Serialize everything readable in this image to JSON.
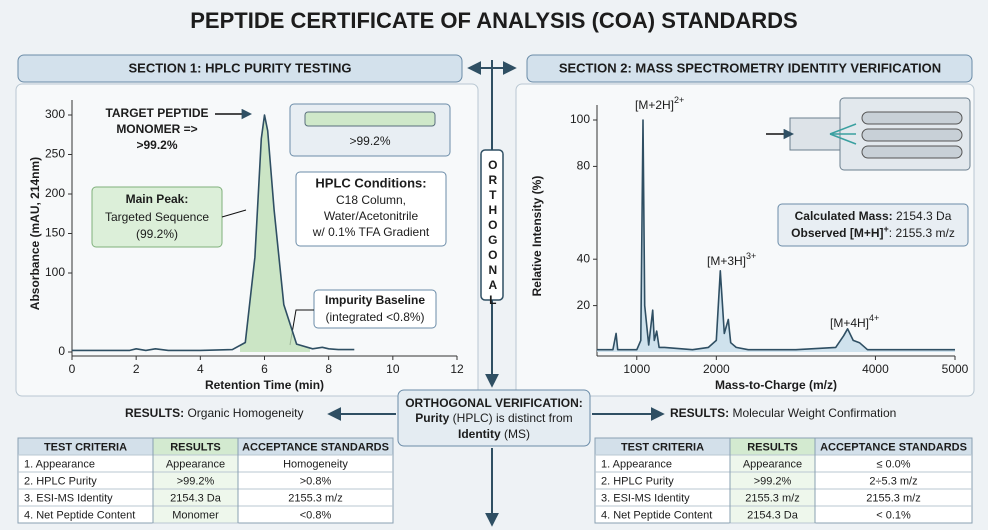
{
  "title": "PEPTIDE CERTIFICATE OF ANALYSIS (COA) STANDARDS",
  "sections": [
    "SECTION 1: HPLC PURITY TESTING",
    "SECTION 2: MASS SPECTROMETRY IDENTITY VERIFICATION"
  ],
  "orthogonal": "ORTHOGONAL",
  "verification": {
    "title": "ORTHOGONAL VERIFICATION:",
    "line1_bold": "Purity",
    "line1": "(HPLC) is distinct from",
    "line2_bold": "Identity",
    "line2": "(MS)"
  },
  "results": [
    {
      "label": "RESULTS:",
      "text": "Organic Homogeneity"
    },
    {
      "label": "RESULTS:",
      "text": "Molecular Weight Confirmation"
    }
  ],
  "chart_data": [
    {
      "type": "line",
      "x_label": "Retention Time (min)",
      "y_label": "Absorbance (mAU, 214nm)",
      "xlim": [
        0,
        12
      ],
      "xticks": [
        0,
        2,
        4,
        6,
        8,
        10,
        12
      ],
      "ylim": [
        0,
        300
      ],
      "yticks": [
        0,
        100,
        150,
        200,
        250,
        300
      ],
      "color": "#2f4f63",
      "x": [
        0,
        1,
        1.8,
        2,
        2.3,
        2.6,
        3,
        4,
        5,
        5.4,
        5.7,
        5.9,
        6,
        6.1,
        6.3,
        6.6,
        7,
        7.5,
        7.8,
        8,
        8.3,
        8.8
      ],
      "values": [
        2,
        2,
        2,
        4,
        2,
        4,
        2,
        2,
        3,
        12,
        120,
        270,
        300,
        280,
        180,
        60,
        10,
        4,
        6,
        4,
        3,
        3
      ],
      "peak_label": [
        "TARGET PEPTIDE",
        "MONOMER =>",
        ">99.2%"
      ],
      "main_peak": {
        "title": "Main Peak:",
        "lines": [
          "Targeted Sequence",
          "(99.2%)"
        ]
      },
      "column_label": ">99.2%",
      "conditions": {
        "title": "HPLC Conditions:",
        "lines": [
          "C18 Column,",
          "Water/Acetonitrile",
          "w/ 0.1% TFA Gradient"
        ]
      },
      "impurity": {
        "title": "Impurity Baseline",
        "lines": [
          "(integrated <0.8%)"
        ]
      }
    },
    {
      "type": "line",
      "x_label": "Mass-to-Charge (m/z)",
      "y_label": "Relative Intensity (%)",
      "xlim": [
        500,
        5000
      ],
      "xticks": [
        1000,
        2000,
        4000,
        5000
      ],
      "ylim": [
        0,
        100
      ],
      "yticks": [
        20,
        40,
        80,
        100
      ],
      "color": "#2f4f63",
      "x": [
        500,
        700,
        740,
        760,
        800,
        1000,
        1050,
        1078,
        1100,
        1150,
        1200,
        1220,
        1250,
        1280,
        1350,
        1700,
        1900,
        2000,
        2050,
        2100,
        2150,
        2180,
        2250,
        2400,
        3000,
        3500,
        3600,
        3650,
        3720,
        3800,
        3900,
        4200,
        5000
      ],
      "values": [
        1,
        1,
        8,
        1,
        1,
        1,
        5,
        100,
        20,
        3,
        18,
        5,
        9,
        2,
        2,
        1,
        2,
        5,
        35,
        8,
        14,
        4,
        2,
        1,
        1,
        2,
        7,
        10,
        5,
        4,
        1,
        1,
        1
      ],
      "peaks": [
        {
          "text": "[M+2H]",
          "charge": "2+"
        },
        {
          "text": "[M+3H]",
          "charge": "3+"
        },
        {
          "text": "[M+4H]",
          "charge": "4+"
        }
      ],
      "mass_box": {
        "calc_label": "Calculated Mass:",
        "calc_value": "2154.3 Da",
        "obs_label": "Observed [M+H]",
        "obs_charge": "+",
        "obs_value": ": 2155.3 m/z"
      }
    }
  ],
  "tables": [
    {
      "header": [
        "TEST CRITERIA",
        "RESULTS",
        "ACCEPTANCE STANDARDS"
      ],
      "rows": [
        [
          "1. Appearance",
          "Appearance",
          "Homogeneity"
        ],
        [
          "2. HPLC Purity",
          ">99.2%",
          ">0.8%"
        ],
        [
          "3. ESI-MS Identity",
          "2154.3 Da",
          "2155.3 m/z"
        ],
        [
          "4. Net Peptide Content",
          "Monomer",
          "<0.8%"
        ]
      ]
    },
    {
      "header": [
        "TEST CRITERIA",
        "RESULTS",
        "ACCEPTANCE STANDARDS"
      ],
      "rows": [
        [
          "1. Appearance",
          "Appearance",
          "≤ 0.0%"
        ],
        [
          "2. HPLC Purity",
          ">99.2%",
          "2÷5.3 m/z"
        ],
        [
          "3. ESI-MS Identity",
          "2155.3 m/z",
          "2155.3  m/z"
        ],
        [
          "4. Net Peptide Content",
          "2154.3 Da",
          "< 0.1%"
        ]
      ]
    }
  ]
}
